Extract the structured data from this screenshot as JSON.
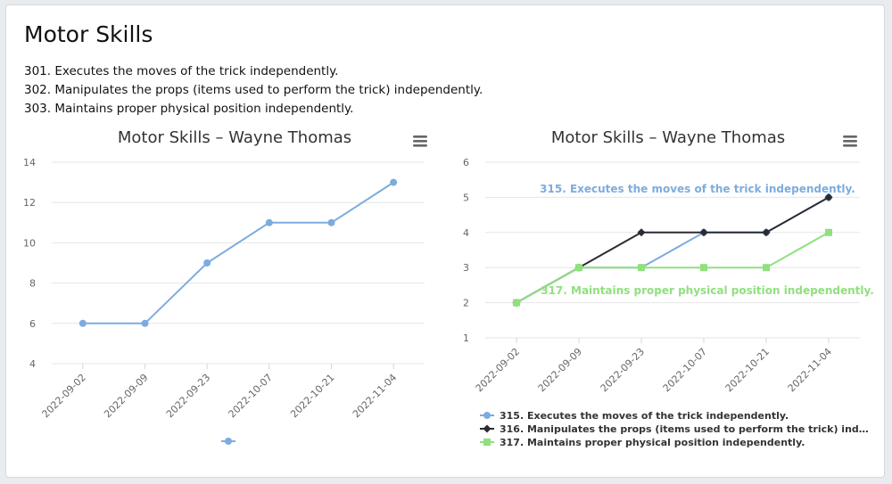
{
  "page": {
    "title": "Motor Skills",
    "descriptions": [
      "301. Executes the moves of the trick independently.",
      "302. Manipulates the props (items used to perform the trick) independently.",
      "303. Maintains proper physical position independently."
    ]
  },
  "chart_data": [
    {
      "type": "line",
      "title": "Motor Skills – Wayne Thomas",
      "categories": [
        "2022-09-02",
        "2022-09-09",
        "2022-09-23",
        "2022-10-07",
        "2022-10-21",
        "2022-11-04"
      ],
      "ylim": [
        4,
        14
      ],
      "yticks": [
        4,
        6,
        8,
        10,
        12,
        14
      ],
      "grid": true,
      "legend": "bottom-center",
      "series": [
        {
          "values": [
            6,
            6,
            9,
            11,
            11,
            13
          ],
          "color": "#7cacdf",
          "marker": "circle"
        }
      ]
    },
    {
      "type": "line",
      "title": "Motor Skills – Wayne Thomas",
      "categories": [
        "2022-09-02",
        "2022-09-09",
        "2022-09-23",
        "2022-10-07",
        "2022-10-21",
        "2022-11-04"
      ],
      "ylim": [
        1,
        6
      ],
      "yticks": [
        1,
        2,
        3,
        4,
        5,
        6
      ],
      "grid": true,
      "legend": "bottom-left",
      "series": [
        {
          "name": "315. Executes the moves of the trick independently.",
          "values": [
            2,
            3,
            3,
            4,
            4,
            5
          ],
          "color": "#7cacdf",
          "marker": "circle"
        },
        {
          "name": "316. Manipulates the props (items used to perform the trick) ind…",
          "values": [
            2,
            3,
            4,
            4,
            4,
            5
          ],
          "color": "#2b2b33",
          "marker": "diamond"
        },
        {
          "name": "317. Maintains proper physical position independently.",
          "values": [
            2,
            3,
            3,
            3,
            3,
            4
          ],
          "color": "#90e07e",
          "marker": "square"
        }
      ],
      "annotations": [
        {
          "text": "315. Executes the moves of the trick independently.",
          "color": "#7cacdf"
        },
        {
          "text": "317. Maintains proper physical position independently.",
          "color": "#90e07e"
        }
      ]
    }
  ]
}
